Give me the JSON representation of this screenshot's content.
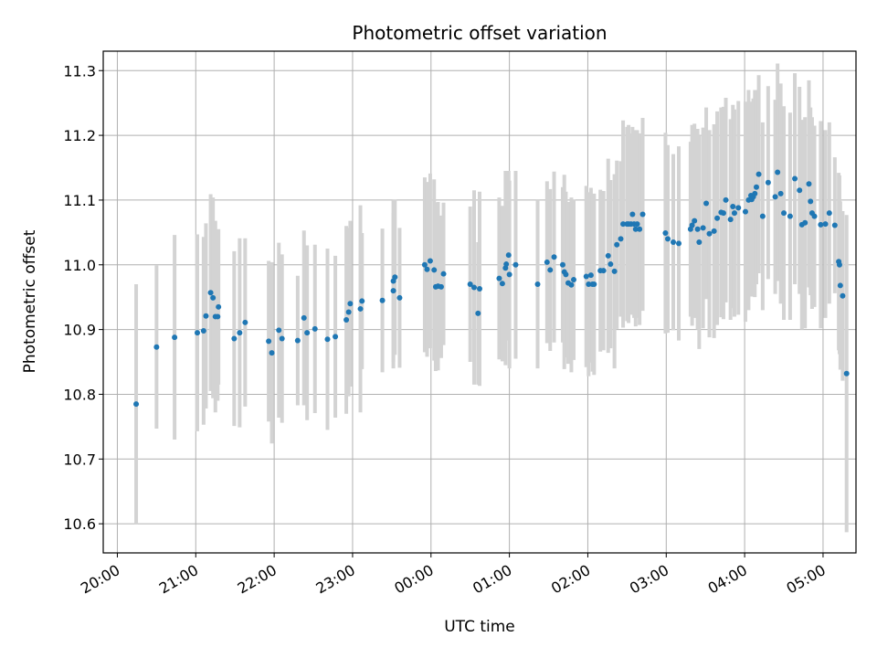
{
  "chart_data": {
    "type": "scatter",
    "title": "Photometric offset variation",
    "xlabel": "UTC time",
    "ylabel": "Photometric offset",
    "x_ticks": [
      "20:00",
      "21:00",
      "22:00",
      "23:00",
      "00:00",
      "01:00",
      "02:00",
      "03:00",
      "04:00",
      "05:00"
    ],
    "y_ticks": [
      "10.6",
      "10.7",
      "10.8",
      "10.9",
      "11.0",
      "11.1",
      "11.2",
      "11.3"
    ],
    "x_unit": "hours after 20:00 UTC",
    "xlim": [
      -0.18,
      9.42
    ],
    "ylim": [
      10.555,
      11.33
    ],
    "grid": true,
    "point_color": "#1f77b4",
    "errorbar_color": "#d3d3d3",
    "series": [
      {
        "x": [
          0.24,
          0.5,
          0.73,
          1.02,
          1.1,
          1.13,
          1.19,
          1.22,
          1.25,
          1.28,
          1.29,
          1.49,
          1.56,
          1.63,
          1.93,
          1.97,
          2.06,
          2.1,
          2.3,
          2.38,
          2.42,
          2.52,
          2.68,
          2.78,
          2.92,
          2.95,
          2.97,
          3.1,
          3.12,
          3.38,
          3.52,
          3.52,
          3.54,
          3.6,
          3.92,
          3.95,
          3.99,
          4.04,
          4.06,
          4.09,
          4.13,
          4.16,
          4.5,
          4.55,
          4.6,
          4.62,
          4.87,
          4.91,
          4.95,
          4.96,
          4.99,
          5.0,
          5.08,
          5.36,
          5.48,
          5.52,
          5.57,
          5.68,
          5.7,
          5.72,
          5.75,
          5.79,
          5.82,
          5.98,
          6.01,
          6.04,
          6.06,
          6.08,
          6.16,
          6.2,
          6.26,
          6.29,
          6.34,
          6.37,
          6.42,
          6.45,
          6.5,
          6.52,
          6.55,
          6.57,
          6.59,
          6.61,
          6.63,
          6.66,
          6.7,
          6.99,
          7.02,
          7.09,
          7.16,
          7.31,
          7.33,
          7.36,
          7.4,
          7.42,
          7.47,
          7.51,
          7.55,
          7.61,
          7.65,
          7.7,
          7.73,
          7.76,
          7.82,
          7.85,
          7.87,
          7.92,
          8.01,
          8.05,
          8.08,
          8.09,
          8.11,
          8.13,
          8.15,
          8.18,
          8.23,
          8.3,
          8.39,
          8.42,
          8.46,
          8.5,
          8.58,
          8.64,
          8.7,
          8.73,
          8.77,
          8.82,
          8.84,
          8.86,
          8.89,
          8.97
        ],
        "y": [
          10.785,
          10.873,
          10.888,
          10.895,
          10.898,
          10.921,
          10.957,
          10.949,
          10.92,
          10.92,
          10.935,
          10.886,
          10.895,
          10.911,
          10.882,
          10.864,
          10.899,
          10.886,
          10.883,
          10.918,
          10.895,
          10.901,
          10.885,
          10.889,
          10.915,
          10.927,
          10.94,
          10.932,
          10.944,
          10.945,
          10.96,
          10.975,
          10.981,
          10.949,
          11.0,
          10.993,
          11.006,
          10.992,
          10.966,
          10.967,
          10.966,
          10.986,
          10.97,
          10.965,
          10.925,
          10.963,
          10.979,
          10.971,
          10.995,
          11.001,
          11.015,
          10.985,
          11.0,
          10.97,
          11.004,
          10.992,
          11.012,
          11.0,
          10.989,
          10.985,
          10.972,
          10.969,
          10.977,
          10.982,
          10.97,
          10.984,
          10.97,
          10.97,
          10.991,
          10.991,
          11.014,
          11.001,
          10.99,
          11.031,
          11.04,
          11.063,
          11.063,
          11.063,
          11.063,
          11.078,
          11.063,
          11.055,
          11.063,
          11.055,
          11.078,
          11.049,
          11.04,
          11.035,
          11.033,
          11.055,
          11.061,
          11.068,
          11.055,
          11.035,
          11.057,
          11.095,
          11.048,
          11.052,
          11.072,
          11.081,
          11.08,
          11.1,
          11.07,
          11.09,
          11.08,
          11.088,
          11.082,
          11.1,
          11.107,
          11.101,
          11.105,
          11.11,
          11.12,
          11.14,
          11.075,
          11.127,
          11.105,
          11.143,
          11.11,
          11.08,
          11.075,
          11.133,
          11.115,
          11.062,
          11.065,
          11.125,
          11.098,
          11.08,
          11.075,
          11.062
        ],
        "yerr": [
          0.185,
          0.126,
          0.158,
          0.152,
          0.145,
          0.143,
          0.152,
          0.155,
          0.148,
          0.13,
          0.12,
          0.135,
          0.146,
          0.13,
          0.124,
          0.14,
          0.135,
          0.13,
          0.1,
          0.135,
          0.135,
          0.13,
          0.14,
          0.125,
          0.145,
          0.13,
          0.128,
          0.16,
          0.105,
          0.111,
          0.12,
          0.125,
          0.12,
          0.108,
          0.135,
          0.135,
          0.135,
          0.14,
          0.13,
          0.13,
          0.11,
          0.11,
          0.12,
          0.15,
          0.11,
          0.15,
          0.125,
          0.12,
          0.15,
          0.118,
          0.13,
          0.145,
          0.145,
          0.13,
          0.125,
          0.125,
          0.132,
          0.12,
          0.15,
          0.128,
          0.125,
          0.135,
          0.124,
          0.14,
          0.142,
          0.135,
          0.135,
          0.14,
          0.125,
          0.123,
          0.15,
          0.13,
          0.15,
          0.13,
          0.12,
          0.16,
          0.15,
          0.153,
          0.14,
          0.135,
          0.145,
          0.15,
          0.145,
          0.148,
          0.149,
          0.155,
          0.145,
          0.136,
          0.15,
          0.135,
          0.155,
          0.15,
          0.155,
          0.165,
          0.155,
          0.148,
          0.16,
          0.165,
          0.165,
          0.162,
          0.164,
          0.158,
          0.155,
          0.157,
          0.16,
          0.165,
          0.17,
          0.17,
          0.145,
          0.15,
          0.152,
          0.16,
          0.15,
          0.153,
          0.145,
          0.149,
          0.15,
          0.168,
          0.17,
          0.165,
          0.16,
          0.163,
          0.16,
          0.162,
          0.163,
          0.16,
          0.145,
          0.148,
          0.14,
          0.16
        ],
        "extra_points": [
          {
            "x": 9.03,
            "y": 11.063,
            "yerr": 0.145
          },
          {
            "x": 9.08,
            "y": 11.08,
            "yerr": 0.14
          },
          {
            "x": 9.15,
            "y": 11.061,
            "yerr": 0.105
          },
          {
            "x": 9.2,
            "y": 11.005,
            "yerr": 0.137
          },
          {
            "x": 9.21,
            "y": 11.0,
            "yerr": 0.138
          },
          {
            "x": 9.22,
            "y": 10.968,
            "yerr": 0.13
          },
          {
            "x": 9.25,
            "y": 10.952,
            "yerr": 0.131
          },
          {
            "x": 9.3,
            "y": 10.832,
            "yerr": 0.245
          }
        ]
      }
    ]
  }
}
